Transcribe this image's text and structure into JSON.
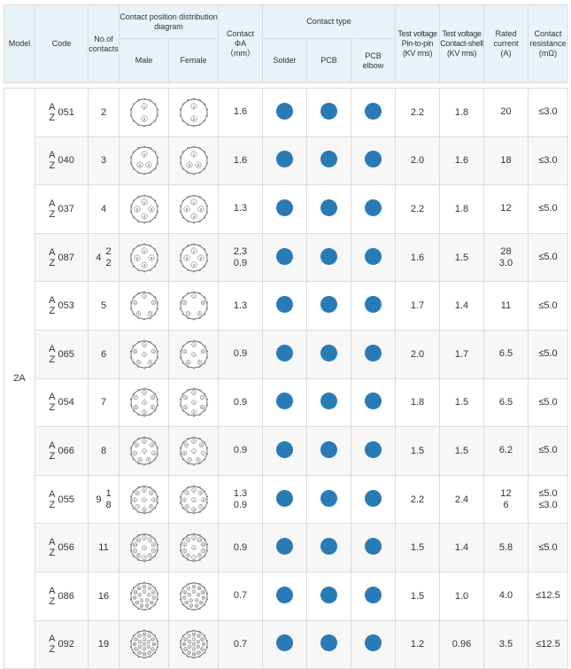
{
  "accent": "#2a7ab5",
  "header": {
    "model": "Model",
    "code": "Code",
    "contacts": "No.of contacts",
    "diagram": "Contact position distribution diagram",
    "male": "Male",
    "female": "Female",
    "diameter_1": "Contact",
    "diameter_2": "ΦA",
    "diameter_3": "（mm）",
    "contact_type": "Contact type",
    "solder": "Solder",
    "pcb": "PCB",
    "pcb_elbow_1": "PCB",
    "pcb_elbow_2": "elbow",
    "tv_pin_1": "Test voltage",
    "tv_pin_2": "Pin-to-pin",
    "tv_pin_3": "(KV rms)",
    "tv_shell_1": "Test voltage",
    "tv_shell_2": "Contact-shell",
    "tv_shell_3": "(KV rms)",
    "current_1": "Rated",
    "current_2": "current",
    "current_3": "(A)",
    "resistance_1": "Contact",
    "resistance_2": "resistance",
    "resistance_3": "(mΩ)"
  },
  "model": "2A",
  "code_prefix": [
    "A",
    "Z"
  ],
  "rows": [
    {
      "code": "051",
      "contacts": "2",
      "sub": [],
      "pins": 2,
      "dia": [
        "1.6"
      ],
      "tv_pin": "2.2",
      "tv_shell": "1.8",
      "current": [
        "20"
      ],
      "res": [
        "≤3.0"
      ]
    },
    {
      "code": "040",
      "contacts": "3",
      "sub": [],
      "pins": 3,
      "dia": [
        "1.6"
      ],
      "tv_pin": "2.0",
      "tv_shell": "1.6",
      "current": [
        "18"
      ],
      "res": [
        "≤3.0"
      ]
    },
    {
      "code": "037",
      "contacts": "4",
      "sub": [],
      "pins": 4,
      "dia": [
        "1.3"
      ],
      "tv_pin": "2.2",
      "tv_shell": "1.8",
      "current": [
        "12"
      ],
      "res": [
        "≤5.0"
      ]
    },
    {
      "code": "087",
      "contacts": "4",
      "sub": [
        "2",
        "2"
      ],
      "pins": 4,
      "dia": [
        "2.3",
        "0.9"
      ],
      "tv_pin": "1.6",
      "tv_shell": "1.5",
      "current": [
        "28",
        "3.0"
      ],
      "res": [
        "≤5.0"
      ]
    },
    {
      "code": "053",
      "contacts": "5",
      "sub": [],
      "pins": 5,
      "dia": [
        "1.3"
      ],
      "tv_pin": "1.7",
      "tv_shell": "1.4",
      "current": [
        "11"
      ],
      "res": [
        "≤5.0"
      ]
    },
    {
      "code": "065",
      "contacts": "6",
      "sub": [],
      "pins": 6,
      "dia": [
        "0.9"
      ],
      "tv_pin": "2.0",
      "tv_shell": "1.7",
      "current": [
        "6.5"
      ],
      "res": [
        "≤5.0"
      ]
    },
    {
      "code": "054",
      "contacts": "7",
      "sub": [],
      "pins": 7,
      "dia": [
        "0.9"
      ],
      "tv_pin": "1.8",
      "tv_shell": "1.5",
      "current": [
        "6.5"
      ],
      "res": [
        "≤5.0"
      ]
    },
    {
      "code": "066",
      "contacts": "8",
      "sub": [],
      "pins": 8,
      "dia": [
        "0.9"
      ],
      "tv_pin": "1.5",
      "tv_shell": "1.5",
      "current": [
        "6.2"
      ],
      "res": [
        "≤5.0"
      ]
    },
    {
      "code": "055",
      "contacts": "9",
      "sub": [
        "1",
        "8"
      ],
      "pins": 9,
      "dia": [
        "1.3",
        "0.9"
      ],
      "tv_pin": "2.2",
      "tv_shell": "2.4",
      "current": [
        "12",
        "6"
      ],
      "res": [
        "≤5.0",
        "≤3.0"
      ]
    },
    {
      "code": "056",
      "contacts": "11",
      "sub": [],
      "pins": 11,
      "dia": [
        "0.9"
      ],
      "tv_pin": "1.5",
      "tv_shell": "1.4",
      "current": [
        "5.8"
      ],
      "res": [
        "≤5.0"
      ]
    },
    {
      "code": "086",
      "contacts": "16",
      "sub": [],
      "pins": 16,
      "dia": [
        "0.7"
      ],
      "tv_pin": "1.5",
      "tv_shell": "1.0",
      "current": [
        "4.0"
      ],
      "res": [
        "≤12.5"
      ]
    },
    {
      "code": "092",
      "contacts": "19",
      "sub": [],
      "pins": 19,
      "dia": [
        "0.7"
      ],
      "tv_pin": "1.2",
      "tv_shell": "0.96",
      "current": [
        "3.5"
      ],
      "res": [
        "≤12.5"
      ]
    }
  ]
}
